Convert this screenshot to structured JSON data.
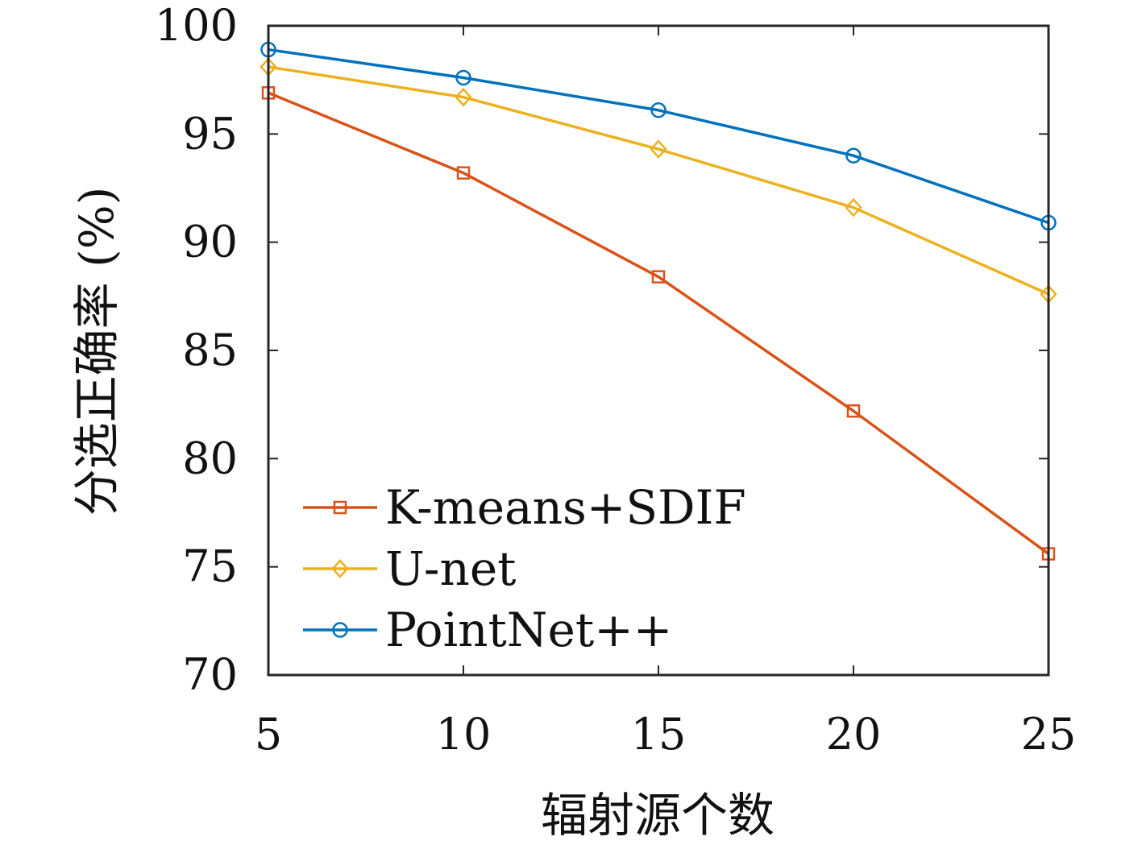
{
  "chart_data": {
    "type": "line",
    "title": "",
    "xlabel": "辐射源个数",
    "ylabel": "分选正确率 (%)",
    "x": [
      5,
      10,
      15,
      20,
      25
    ],
    "xlim": [
      5,
      25
    ],
    "ylim": [
      70,
      100
    ],
    "xticks": [
      5,
      10,
      15,
      20,
      25
    ],
    "yticks": [
      70,
      75,
      80,
      85,
      90,
      95,
      100
    ],
    "grid": false,
    "legend_position": "bottom-left",
    "series": [
      {
        "name": "K-means+SDIF",
        "color": "#D95319",
        "marker": "square",
        "values": [
          96.9,
          93.2,
          88.4,
          82.2,
          75.6
        ]
      },
      {
        "name": "U-net",
        "color": "#EDB120",
        "marker": "diamond",
        "values": [
          98.1,
          96.7,
          94.3,
          91.6,
          87.6
        ]
      },
      {
        "name": "PointNet++",
        "color": "#0072BD",
        "marker": "circle",
        "values": [
          98.9,
          97.6,
          96.1,
          94.0,
          90.9
        ]
      }
    ]
  }
}
